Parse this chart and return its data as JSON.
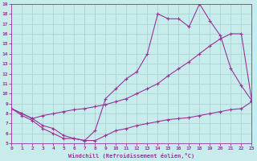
{
  "xlabel": "Windchill (Refroidissement éolien,°C)",
  "bg_color": "#c8ecec",
  "grid_color": "#aad4d4",
  "line_color": "#993399",
  "xlim": [
    0,
    23
  ],
  "ylim": [
    5,
    19
  ],
  "xticks": [
    0,
    1,
    2,
    3,
    4,
    5,
    6,
    7,
    8,
    9,
    10,
    11,
    12,
    13,
    14,
    15,
    16,
    17,
    18,
    19,
    20,
    21,
    22,
    23
  ],
  "yticks": [
    5,
    6,
    7,
    8,
    9,
    10,
    11,
    12,
    13,
    14,
    15,
    16,
    17,
    18,
    19
  ],
  "line1_x": [
    0,
    1,
    2,
    3,
    4,
    5,
    6,
    7,
    8,
    9,
    10,
    11,
    12,
    13,
    14,
    15,
    16,
    17,
    18,
    19,
    20,
    21,
    22,
    23
  ],
  "line1_y": [
    8.5,
    8.0,
    7.5,
    6.8,
    6.5,
    5.8,
    5.5,
    5.3,
    5.3,
    5.8,
    6.3,
    6.5,
    6.8,
    7.0,
    7.2,
    7.4,
    7.5,
    7.6,
    7.8,
    8.0,
    8.2,
    8.4,
    8.5,
    9.2
  ],
  "line2_x": [
    0,
    1,
    2,
    3,
    4,
    5,
    6,
    7,
    8,
    9,
    10,
    11,
    12,
    13,
    14,
    15,
    16,
    17,
    18,
    19,
    20,
    21,
    22,
    23
  ],
  "line2_y": [
    8.5,
    8.0,
    7.5,
    7.8,
    8.0,
    8.2,
    8.4,
    8.5,
    8.7,
    8.9,
    9.2,
    9.5,
    10.0,
    10.5,
    11.0,
    11.8,
    12.5,
    13.2,
    14.0,
    14.8,
    15.5,
    16.0,
    16.0,
    9.3
  ],
  "line3_x": [
    0,
    1,
    2,
    3,
    4,
    5,
    6,
    7,
    8,
    9,
    10,
    11,
    12,
    13,
    14,
    15,
    16,
    17,
    18,
    19,
    20,
    21,
    22,
    23
  ],
  "line3_y": [
    8.5,
    7.8,
    7.3,
    6.5,
    6.0,
    5.5,
    5.5,
    5.3,
    6.3,
    9.5,
    10.5,
    11.5,
    12.2,
    14.0,
    18.0,
    17.5,
    17.5,
    16.7,
    19.0,
    17.3,
    15.8,
    12.5,
    10.8,
    9.3
  ]
}
